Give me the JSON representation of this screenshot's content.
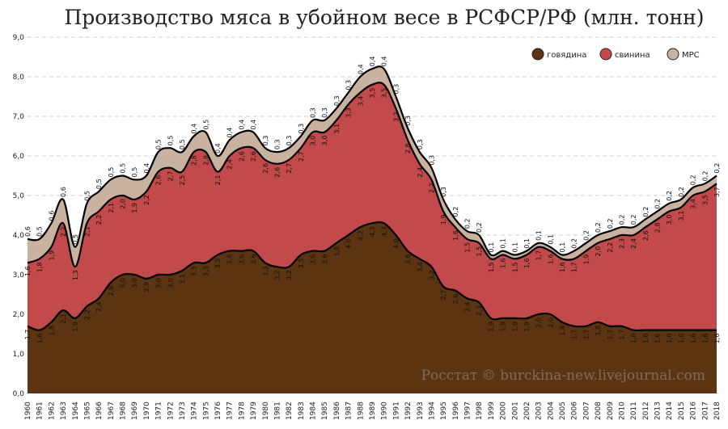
{
  "chart_data": {
    "type": "area",
    "title": "Производство мяса в убойном весе в РСФСР/РФ (млн. тонн)",
    "xlabel": "",
    "ylabel": "",
    "ylim": [
      0,
      9
    ],
    "yticks": [
      "0,0",
      "1,0",
      "2,0",
      "3,0",
      "4,0",
      "5,0",
      "6,0",
      "7,0",
      "8,0",
      "9,0"
    ],
    "grid": true,
    "legend_position": "top-right",
    "stacked": true,
    "x": [
      "1960",
      "1961",
      "1962",
      "1963",
      "1964",
      "1965",
      "1966",
      "1967",
      "1968",
      "1969",
      "1970",
      "1971",
      "1972",
      "1973",
      "1974",
      "1975",
      "1976",
      "1977",
      "1978",
      "1979",
      "1980",
      "1981",
      "1982",
      "1983",
      "1984",
      "1985",
      "1986",
      "1987",
      "1988",
      "1989",
      "1990",
      "1991",
      "1992",
      "1993",
      "1994",
      "1995",
      "1996",
      "1997",
      "1998",
      "1999",
      "2000",
      "2001",
      "2002",
      "2003",
      "2004",
      "2005",
      "2006",
      "2007",
      "2008",
      "2009",
      "2010",
      "2011",
      "2012",
      "2013",
      "2014",
      "2015",
      "2016",
      "2017",
      "2018"
    ],
    "series": [
      {
        "name": "говядина",
        "color": "#5c3411",
        "values": [
          1.7,
          1.6,
          1.8,
          2.1,
          1.9,
          2.2,
          2.4,
          2.8,
          3.0,
          3.0,
          2.9,
          3.0,
          3.0,
          3.1,
          3.3,
          3.3,
          3.5,
          3.6,
          3.6,
          3.6,
          3.3,
          3.2,
          3.2,
          3.5,
          3.6,
          3.6,
          3.8,
          4.0,
          4.2,
          4.3,
          4.3,
          4.0,
          3.6,
          3.4,
          3.2,
          2.7,
          2.6,
          2.4,
          2.3,
          1.9,
          1.9,
          1.9,
          1.9,
          2.0,
          2.0,
          1.8,
          1.7,
          1.7,
          1.8,
          1.7,
          1.7,
          1.6,
          1.6,
          1.6,
          1.6,
          1.6,
          1.6,
          1.6,
          1.6
        ]
      },
      {
        "name": "свинина",
        "color": "#c24a4a",
        "values": [
          1.6,
          1.8,
          1.9,
          2.2,
          1.3,
          2.1,
          2.2,
          2.1,
          2.0,
          1.9,
          2.2,
          2.6,
          2.7,
          2.5,
          2.8,
          2.8,
          2.1,
          2.4,
          2.6,
          2.6,
          2.6,
          2.6,
          2.7,
          2.7,
          3.0,
          3.0,
          3.1,
          3.3,
          3.4,
          3.5,
          3.5,
          3.2,
          2.8,
          2.4,
          2.2,
          1.9,
          1.6,
          1.5,
          1.5,
          1.5,
          1.6,
          1.5,
          1.6,
          1.7,
          1.6,
          1.6,
          1.7,
          1.9,
          2.0,
          2.2,
          2.3,
          2.4,
          2.6,
          2.8,
          3.0,
          3.1,
          3.4,
          3.5,
          3.7
        ]
      },
      {
        "name": "МРС",
        "color": "#c9b29f",
        "values": [
          0.6,
          0.5,
          0.6,
          0.6,
          0.5,
          0.5,
          0.5,
          0.5,
          0.5,
          0.5,
          0.4,
          0.5,
          0.5,
          0.5,
          0.4,
          0.5,
          0.4,
          0.4,
          0.4,
          0.4,
          0.3,
          0.3,
          0.3,
          0.3,
          0.3,
          0.3,
          0.3,
          0.3,
          0.4,
          0.4,
          0.4,
          0.3,
          0.3,
          0.3,
          0.3,
          0.3,
          0.2,
          0.2,
          0.2,
          0.1,
          0.1,
          0.1,
          0.1,
          0.1,
          0.1,
          0.1,
          0.2,
          0.2,
          0.2,
          0.2,
          0.2,
          0.2,
          0.2,
          0.2,
          0.2,
          0.2,
          0.2,
          0.2,
          0.2
        ]
      }
    ],
    "watermark": "Росстат © burckina-new.livejournal.com"
  }
}
